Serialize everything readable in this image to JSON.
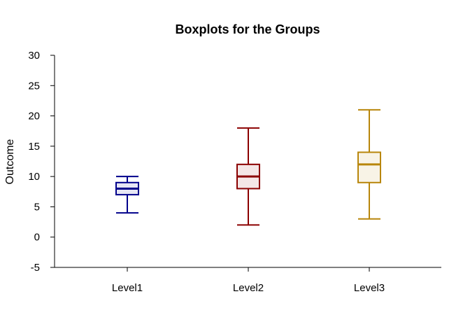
{
  "chart_data": {
    "type": "boxplot",
    "title": "Boxplots for the Groups",
    "xlabel": "",
    "ylabel": "Outcome",
    "ylim": [
      -5,
      30
    ],
    "yticks": [
      -5,
      0,
      5,
      10,
      15,
      20,
      25,
      30
    ],
    "categories": [
      "Level1",
      "Level2",
      "Level3"
    ],
    "boxes": [
      {
        "category": "Level1",
        "whisker_low": 4,
        "q1": 7,
        "median": 8,
        "q3": 9,
        "whisker_high": 10,
        "stroke": "#00008B",
        "fill": "#E6E6F4"
      },
      {
        "category": "Level2",
        "whisker_low": 2,
        "q1": 8,
        "median": 10,
        "q3": 12,
        "whisker_high": 18,
        "stroke": "#8B0000",
        "fill": "#F4E6E6"
      },
      {
        "category": "Level3",
        "whisker_low": 3,
        "q1": 9,
        "median": 12,
        "q3": 14,
        "whisker_high": 21,
        "stroke": "#B8860B",
        "fill": "#F8F3E6"
      }
    ],
    "grid": false,
    "legend": "none"
  }
}
